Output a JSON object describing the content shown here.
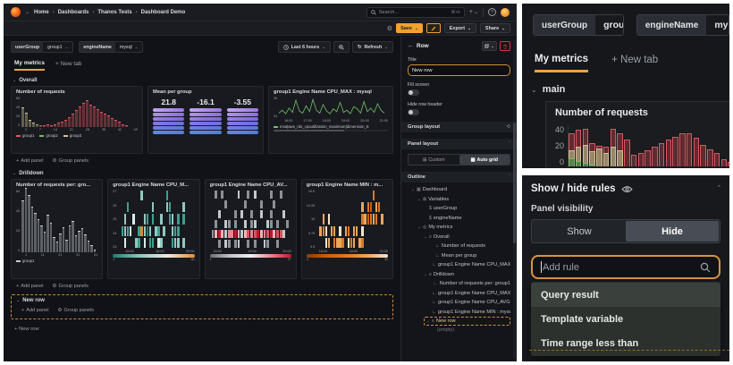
{
  "nav": {
    "breadcrumb": [
      "Home",
      "Dashboards",
      "Thanos Tests",
      "Dashboard Demo"
    ],
    "search_placeholder": "Search...",
    "search_shortcut": "⌘+k",
    "add_label": "+",
    "help_label": "?"
  },
  "toolbar": {
    "save_label": "Save",
    "export_label": "Export",
    "share_label": "Share"
  },
  "variables": [
    {
      "label": "userGroup",
      "value": "group1"
    },
    {
      "label": "engineName",
      "value": "mysql"
    }
  ],
  "time": {
    "range": "Last 6 hours",
    "refresh": "Refresh"
  },
  "tabs": {
    "active": "My metrics",
    "new_tab": "New tab"
  },
  "sections": {
    "overall": "Overall",
    "drilldown": "Drilldown",
    "new_row": "New row",
    "zoom_main": "main"
  },
  "actions": {
    "add_panel": "Add panel",
    "group_panels": "Group panels",
    "new_row": "New row"
  },
  "edit_pane": {
    "header": "Row",
    "title_label": "Title",
    "title_value": "New row",
    "fill_screen": "Fill screen",
    "hide_row_header": "Hide row header",
    "group_layout": "Group layout",
    "panel_layout": "Panel layout",
    "layout_options": [
      "Custom",
      "Auto grid"
    ],
    "layout_active": "Auto grid",
    "outline_label": "Outline",
    "tree": [
      {
        "icon": "dashboard",
        "label": "Dashboard",
        "depth": 0,
        "caret": true
      },
      {
        "icon": "variables",
        "label": "Variables",
        "depth": 1,
        "caret": true
      },
      {
        "icon": "var",
        "label": "userGroup",
        "depth": 2
      },
      {
        "icon": "var",
        "label": "engineName",
        "depth": 2
      },
      {
        "icon": "metrics",
        "label": "My metrics",
        "depth": 1,
        "caret": true
      },
      {
        "icon": "row",
        "label": "Overall",
        "depth": 2,
        "caret": true
      },
      {
        "icon": "panel",
        "label": "Number of requests",
        "depth": 3
      },
      {
        "icon": "panel",
        "label": "Mean per group",
        "depth": 3
      },
      {
        "icon": "panel",
        "label": "group1 Engine Name CPU_MAX...",
        "depth": 3
      },
      {
        "icon": "row",
        "label": "Drilldown",
        "depth": 2,
        "caret": true
      },
      {
        "icon": "panel",
        "label": "Number of requests per: group1",
        "depth": 3
      },
      {
        "icon": "panel",
        "label": "group1 Engine Name CPU_MAX...",
        "depth": 3
      },
      {
        "icon": "panel",
        "label": "group1 Engine Name CPU_AVG ...",
        "depth": 3
      },
      {
        "icon": "panel",
        "label": "group1 Engine Name MIN : mysql",
        "depth": 3
      },
      {
        "icon": "row",
        "label": "New row",
        "depth": 2,
        "caret": true,
        "selected": true
      },
      {
        "icon": "none",
        "label": "(empty)",
        "depth": 3,
        "muted": true
      }
    ]
  },
  "zoom_bottom": {
    "title": "Show / hide rules",
    "panel_visibility": "Panel visibility",
    "show": "Show",
    "hide": "Hide",
    "active": "Hide",
    "search_placeholder": "Add rule",
    "options": [
      "Query result",
      "Template variable",
      "Time range less than"
    ],
    "highlighted": "Query result"
  },
  "chart_data": [
    {
      "id": "overall_requests",
      "type": "bar",
      "title": "Number of requests",
      "ylim": [
        0,
        60
      ],
      "yticks": [
        "60",
        "40",
        "20",
        "0"
      ],
      "xticks": [
        "0",
        "7",
        "14",
        "21",
        "28",
        "35",
        "42",
        "49"
      ],
      "legend": [
        {
          "name": "group1",
          "color": "#e0575f"
        },
        {
          "name": "group2",
          "color": "#73bf69"
        },
        {
          "name": "group3",
          "color": "#d3c295"
        }
      ],
      "colors": {
        "r": "#e0575f",
        "g": "#73bf69",
        "t": "#d3c295"
      },
      "bars": [
        [
          38,
          "t"
        ],
        [
          28,
          "t"
        ],
        [
          14,
          "t"
        ],
        [
          8,
          "t"
        ],
        [
          6,
          "g"
        ],
        [
          4,
          "r"
        ],
        [
          3,
          "r"
        ],
        [
          5,
          "r"
        ],
        [
          4,
          "r"
        ],
        [
          6,
          "r"
        ],
        [
          8,
          "r"
        ],
        [
          10,
          "r"
        ],
        [
          14,
          "r"
        ],
        [
          20,
          "r"
        ],
        [
          26,
          "r"
        ],
        [
          33,
          "r"
        ],
        [
          41,
          "r"
        ],
        [
          48,
          "r"
        ],
        [
          53,
          "r"
        ],
        [
          45,
          "r"
        ],
        [
          40,
          "r"
        ],
        [
          35,
          "r"
        ],
        [
          30,
          "r"
        ],
        [
          27,
          "r"
        ],
        [
          23,
          "r"
        ],
        [
          18,
          "r"
        ],
        [
          14,
          "r"
        ],
        [
          10,
          "r"
        ],
        [
          6,
          "r"
        ],
        [
          4,
          "r"
        ]
      ]
    },
    {
      "id": "mean_per_group",
      "type": "gauge-stat",
      "title": "Mean per group",
      "values": [
        "21.8",
        "-16.1",
        "-3.55"
      ]
    },
    {
      "id": "cpu_max",
      "type": "line",
      "title": "group1 Engine Name CPU_MAX : mysql",
      "ylim": [
        23.5,
        26.5
      ],
      "yticks": [
        "26",
        "24"
      ],
      "xticks": [
        "16:00",
        "17:00",
        "18:00",
        "19:00",
        "20:00",
        "21:00"
      ],
      "legend": [
        {
          "name": "msa|aws_rds_cpuutilization_maximum{dimension_E",
          "color": "#73bf69"
        }
      ],
      "color": "#73bf69",
      "values": [
        24.2,
        24.6,
        24.1,
        24.9,
        24.3,
        26.0,
        24.5,
        24.2,
        25.2,
        24.4,
        26.1,
        24.6,
        24.2,
        25.4,
        24.5,
        24.1,
        24.8,
        24.4,
        25.7,
        24.3,
        24.6,
        24.1,
        25.1,
        24.8,
        24.2,
        25.8,
        24.4,
        24.9,
        24.3,
        25.5,
        24.6,
        24.2
      ]
    },
    {
      "id": "drill_requests",
      "type": "bar",
      "title": "Number of requests per: gro...",
      "ylim": [
        0,
        60
      ],
      "yticks": [
        "60",
        "40",
        "20",
        "0"
      ],
      "xticks": [
        "1",
        "11",
        "21",
        "31",
        "41"
      ],
      "legend": [
        {
          "name": "group1",
          "color": "#c9ccd1"
        }
      ],
      "colors": {
        "w": "#c9ccd1"
      },
      "bars": [
        [
          50,
          "w"
        ],
        [
          62,
          "w"
        ],
        [
          55,
          "w"
        ],
        [
          44,
          "w"
        ],
        [
          38,
          "w"
        ],
        [
          32,
          "w"
        ],
        [
          26,
          "w"
        ],
        [
          20,
          "w"
        ],
        [
          36,
          "w"
        ],
        [
          28,
          "w"
        ],
        [
          15,
          "w"
        ],
        [
          10,
          "w"
        ],
        [
          18,
          "w"
        ],
        [
          24,
          "w"
        ],
        [
          12,
          "w"
        ],
        [
          26,
          "w"
        ],
        [
          30,
          "w"
        ],
        [
          16,
          "w"
        ],
        [
          21,
          "w"
        ],
        [
          23,
          "w"
        ],
        [
          17,
          "w"
        ],
        [
          11,
          "w"
        ],
        [
          7,
          "w"
        ],
        [
          3,
          "w"
        ]
      ]
    },
    {
      "id": "heat_cpu_max",
      "type": "heatmap",
      "title": "group1 Engine Name CPU_M...",
      "yticks": [
        "27",
        "26",
        "25",
        "24",
        "23"
      ],
      "xticks": [
        "16:00",
        "18:00",
        "20:00"
      ],
      "palette": "teal-orange",
      "scale_min": "1",
      "scale_max": "30",
      "rows": [
        "........2........3......",
        "...3........2....23....2",
        "..2..1...23.3..2..32.3.3",
        ".3231..38242.23.2..233..",
        "..1...23.1.33.12...322.2"
      ]
    },
    {
      "id": "heat_cpu_avg",
      "type": "heatmap",
      "title": "group1 Engine Name CPU_AV...",
      "yticks": [],
      "xticks": [
        "16:00",
        "18:00",
        "20:00"
      ],
      "palette": "gray-red",
      "scale_min": "1",
      "scale_max": "27",
      "rows": [
        ".2.2....3..2.3....2..2..",
        "....2.....2....2...2....",
        "..3....2.3..2..3..2...3.",
        ".2..32.2..3.23...32.2..2",
        "26963779636878967896883.",
        "..2.32.23..2.2..32..2..."
      ]
    },
    {
      "id": "heat_min",
      "type": "heatmap",
      "title": "group1 Engine Name MIN : m...",
      "yticks": [
        "10.5",
        "10.25",
        "10",
        "9.75",
        "9.5"
      ],
      "xticks": [
        "16:00",
        "18:00",
        "20:00"
      ],
      "palette": "orange",
      "scale_min": "3",
      "scale_max": "33",
      "rows": [
        "....................7...",
        "................6.78.67.",
        "..6.5...........768767.6",
        ".675.66.5.67.66.5.......",
        "...56.7667.576.67......."
      ]
    },
    {
      "id": "zoom_requests",
      "type": "bar-series",
      "title": "Number of requests",
      "ylim": [
        0,
        50
      ],
      "yticks": [
        "40",
        "20",
        "0"
      ],
      "series": [
        {
          "name": "group1",
          "color": "#d9575f",
          "fill": "#6e3036",
          "values": [
            40,
            45,
            46,
            28,
            25,
            24,
            46,
            40,
            33,
            14,
            16,
            20,
            24,
            28,
            33,
            36,
            40,
            40,
            35,
            26,
            21,
            16,
            9,
            5
          ]
        },
        {
          "name": "group3",
          "color": "#d3c295",
          "fill": "#a99c77",
          "values": [
            20,
            24,
            26,
            18,
            22,
            16,
            24,
            20
          ]
        },
        {
          "name": "group2",
          "color": "#73bf69",
          "fill": "#4e7d48",
          "values": [
            10,
            7,
            4,
            2
          ]
        }
      ]
    }
  ]
}
